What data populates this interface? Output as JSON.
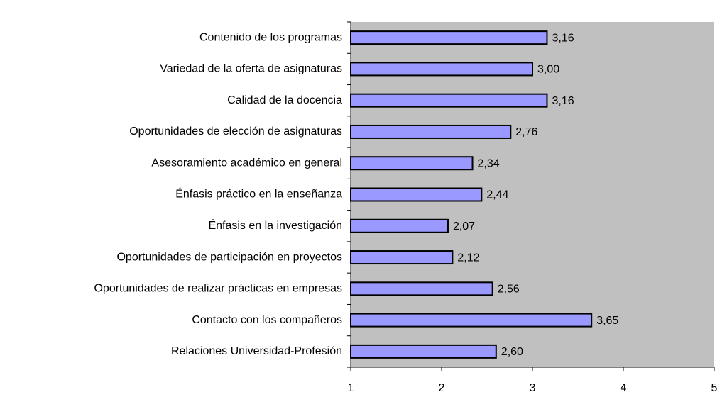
{
  "chart_data": {
    "type": "bar",
    "orientation": "horizontal",
    "categories": [
      "Contenido de los programas",
      "Variedad de la oferta de asignaturas",
      "Calidad de la docencia",
      "Oportunidades de elección de asignaturas",
      "Asesoramiento académico en general",
      "Énfasis práctico en la enseñanza",
      "Énfasis en la investigación",
      "Oportunidades de participación en proyectos",
      "Oportunidades de realizar prácticas en empresas",
      "Contacto con los compañeros",
      "Relaciones Universidad-Profesión"
    ],
    "values": [
      3.16,
      3.0,
      3.16,
      2.76,
      2.34,
      2.44,
      2.07,
      2.12,
      2.56,
      3.65,
      2.6
    ],
    "value_labels": [
      "3,16",
      "3,00",
      "3,16",
      "2,76",
      "2,34",
      "2,44",
      "2,07",
      "2,12",
      "2,56",
      "3,65",
      "2,60"
    ],
    "color": "#9999ff",
    "xlim": [
      1,
      5
    ],
    "xticks": [
      1,
      2,
      3,
      4,
      5
    ],
    "plot_background": "#c0c0c0"
  }
}
